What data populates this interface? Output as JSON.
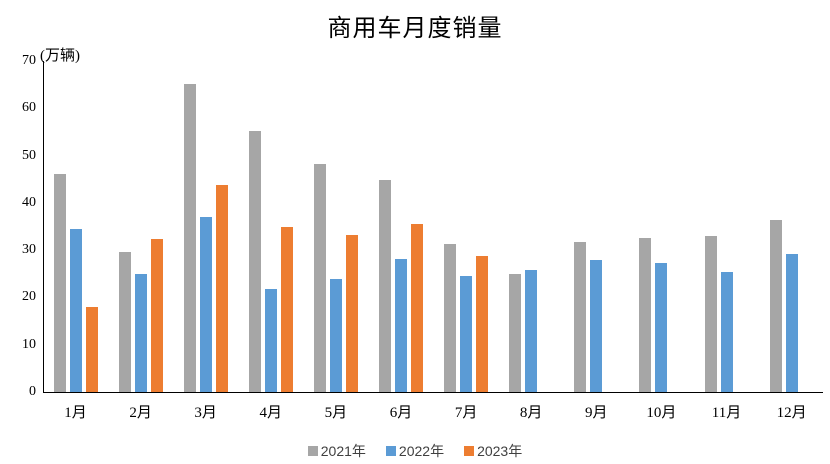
{
  "chart_data": {
    "type": "bar",
    "title": "商用车月度销量",
    "unit_label": "(万辆)",
    "categories": [
      "1月",
      "2月",
      "3月",
      "4月",
      "5月",
      "6月",
      "7月",
      "8月",
      "9月",
      "10月",
      "11月",
      "12月"
    ],
    "series": [
      {
        "name": "2021年",
        "color": "#a6a6a6",
        "values": [
          46.0,
          29.7,
          65.2,
          55.1,
          48.2,
          44.8,
          31.3,
          24.9,
          31.8,
          32.6,
          33.0,
          36.4
        ]
      },
      {
        "name": "2022年",
        "color": "#5b9bd5",
        "values": [
          34.5,
          25.0,
          37.0,
          21.8,
          24.0,
          28.1,
          24.5,
          25.8,
          27.9,
          27.2,
          25.4,
          29.1
        ]
      },
      {
        "name": "2023年",
        "color": "#ed7d31",
        "values": [
          18.0,
          32.4,
          43.7,
          34.9,
          33.2,
          35.5,
          28.8,
          null,
          null,
          null,
          null,
          null
        ]
      }
    ],
    "ylim": [
      0,
      70
    ],
    "yticks": [
      0,
      10,
      20,
      30,
      40,
      50,
      60,
      70
    ],
    "grid": false,
    "legend_position": "bottom",
    "axis_color": "#000000",
    "legend_text_color": "#404040"
  }
}
